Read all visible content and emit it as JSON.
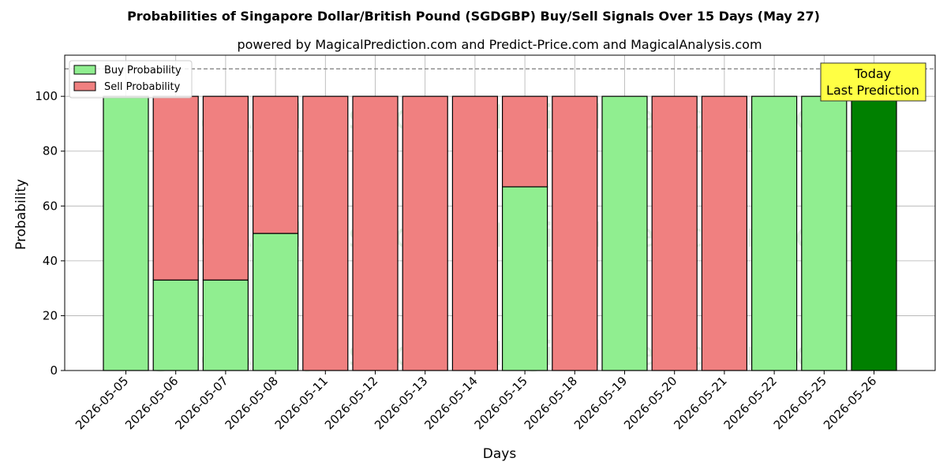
{
  "chart_data": {
    "type": "bar",
    "stacked": true,
    "title": "Probabilities of Singapore Dollar/British Pound (SGDGBP) Buy/Sell Signals Over 15 Days (May 27)",
    "subtitle": "powered by MagicalPrediction.com and Predict-Price.com and MagicalAnalysis.com",
    "xlabel": "Days",
    "ylabel": "Probability",
    "ylim": [
      0,
      115
    ],
    "yticks": [
      0,
      20,
      40,
      60,
      80,
      100
    ],
    "reference_line": 110,
    "grid": true,
    "legend_position": "top-left",
    "categories": [
      "2026-05-05",
      "2026-05-06",
      "2026-05-07",
      "2026-05-08",
      "2026-05-11",
      "2026-05-12",
      "2026-05-13",
      "2026-05-14",
      "2026-05-15",
      "2026-05-18",
      "2026-05-19",
      "2026-05-20",
      "2026-05-21",
      "2026-05-22",
      "2026-05-25",
      "2026-05-26"
    ],
    "series": [
      {
        "name": "Buy Probability",
        "color": "#90ee90",
        "values": [
          100,
          33,
          33,
          50,
          0,
          0,
          0,
          0,
          67,
          0,
          100,
          0,
          0,
          100,
          100,
          100
        ]
      },
      {
        "name": "Sell Probability",
        "color": "#f08080",
        "values": [
          0,
          67,
          67,
          50,
          100,
          100,
          100,
          100,
          33,
          100,
          0,
          100,
          100,
          0,
          0,
          0
        ]
      }
    ],
    "highlight": {
      "index": 15,
      "color": "#008000"
    },
    "annotation": {
      "line1": "Today",
      "line2": "Last Prediction",
      "color": "#ffff44"
    },
    "watermarks": [
      "MagicalAnalysis.com",
      "MagicalPrediction.com"
    ]
  }
}
